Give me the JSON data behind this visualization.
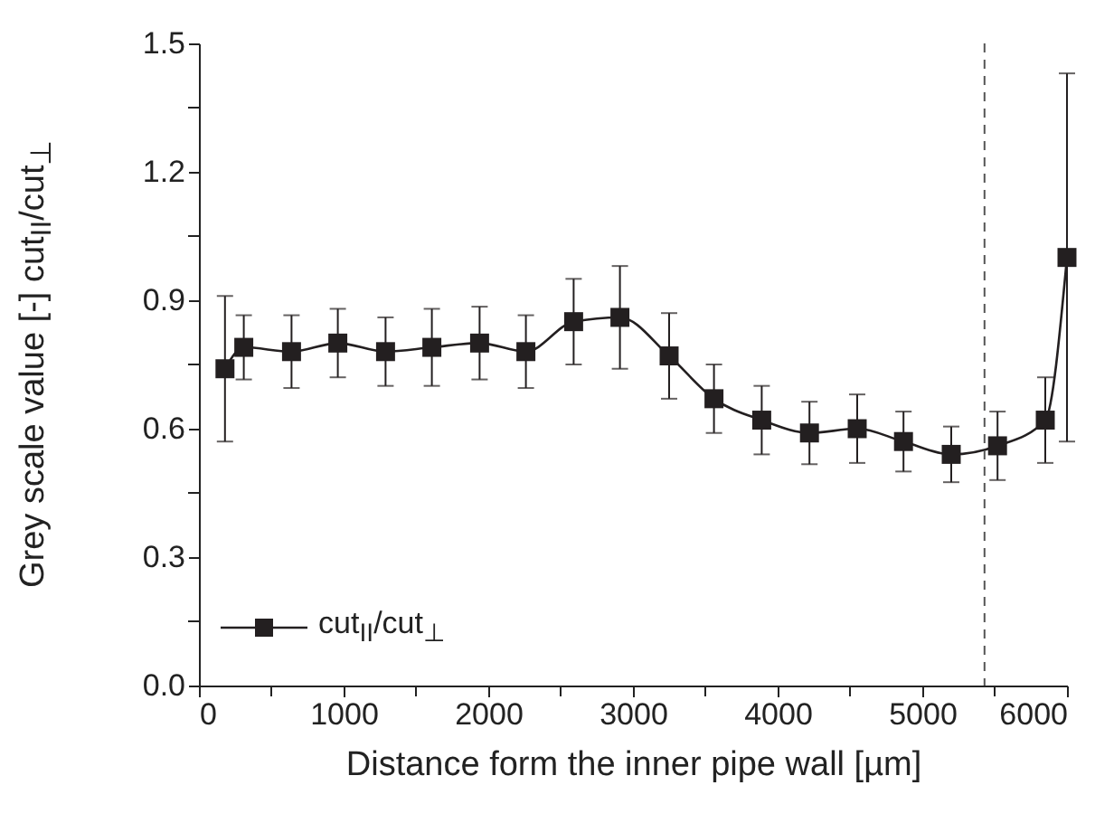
{
  "chart_data": {
    "type": "line",
    "xlabel": "Distance form the inner pipe wall [µm]",
    "ylabel": "Grey scale value [-] cut$_{II}$/cut$_{⊥}$",
    "x": [
      180,
      310,
      640,
      960,
      1290,
      1610,
      1940,
      2260,
      2590,
      2910,
      3250,
      3560,
      3890,
      4220,
      4550,
      4870,
      5200,
      5520,
      5850,
      6000
    ],
    "series": [
      {
        "name": "cut$_{II}$/cut$_{⊥}$",
        "color": "#231f20",
        "values": [
          0.74,
          0.79,
          0.78,
          0.8,
          0.78,
          0.79,
          0.8,
          0.78,
          0.85,
          0.86,
          0.77,
          0.67,
          0.62,
          0.59,
          0.6,
          0.57,
          0.54,
          0.56,
          0.62,
          1.0
        ],
        "errors": [
          0.17,
          0.075,
          0.085,
          0.08,
          0.08,
          0.09,
          0.085,
          0.085,
          0.1,
          0.12,
          0.1,
          0.08,
          0.08,
          0.073,
          0.08,
          0.07,
          0.065,
          0.08,
          0.1,
          0.43
        ]
      }
    ],
    "xlim": [
      0,
      6000
    ],
    "xticks": [
      0,
      {
        "value": 500,
        "label": null
      },
      1000,
      {
        "value": 1500,
        "label": null
      },
      2000,
      {
        "value": 2500,
        "label": null
      },
      3000,
      {
        "value": 3500,
        "label": null
      },
      4000,
      {
        "value": 4500,
        "label": null
      },
      5000,
      {
        "value": 5500,
        "label": null
      },
      6000
    ],
    "ylim": [
      0,
      1.5
    ],
    "yticks": [
      {
        "value": 0,
        "label": "0.0"
      },
      {
        "value": 0.15,
        "label": null
      },
      0.3,
      {
        "value": 0.45,
        "label": null
      },
      0.6,
      {
        "value": 0.75,
        "label": null
      },
      0.9,
      {
        "value": 1.05,
        "label": null
      },
      1.2,
      {
        "value": 1.35,
        "label": null
      },
      1.5
    ],
    "ref_lines": [
      {
        "axis": "x",
        "value": 5430,
        "line_style": "dashed",
        "color": "#555555"
      }
    ],
    "legend": "bottom left",
    "marker": "square",
    "line_style": "solid",
    "grid": false
  }
}
